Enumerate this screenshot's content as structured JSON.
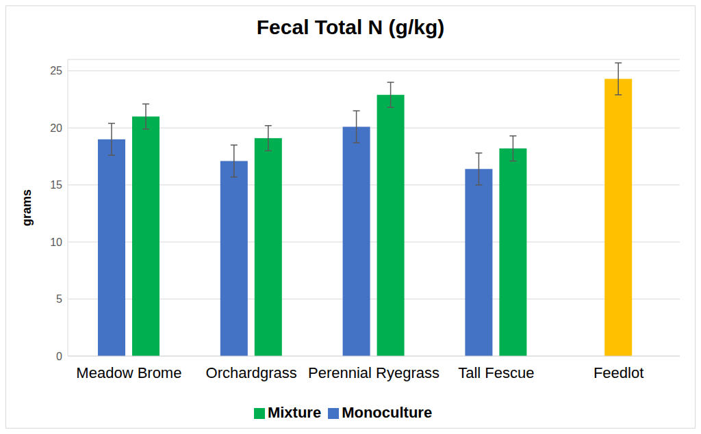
{
  "chart_data": {
    "type": "bar",
    "title": "Fecal Total N (g/kg)",
    "y_label": "grams",
    "categories": [
      "Meadow Brome",
      "Orchardgrass",
      "Perennial Ryegrass",
      "Tall Fescue",
      "Feedlot"
    ],
    "series": [
      {
        "name": "Monoculture",
        "color": "#4472c4",
        "values": [
          19.0,
          17.1,
          20.1,
          16.4,
          null
        ],
        "errors": [
          1.4,
          1.4,
          1.4,
          1.4,
          null
        ]
      },
      {
        "name": "Mixture",
        "color": "#00b050",
        "colors": [
          "#00b050",
          "#00b050",
          "#00b050",
          "#00b050",
          "#ffc000"
        ],
        "values": [
          21.0,
          19.1,
          22.9,
          18.2,
          24.3
        ],
        "errors": [
          1.1,
          1.1,
          1.1,
          1.1,
          1.4
        ]
      }
    ],
    "ylim": [
      0,
      26
    ],
    "yticks": [
      0,
      5,
      10,
      15,
      20,
      25
    ],
    "grid": true,
    "legend": "bottom"
  }
}
